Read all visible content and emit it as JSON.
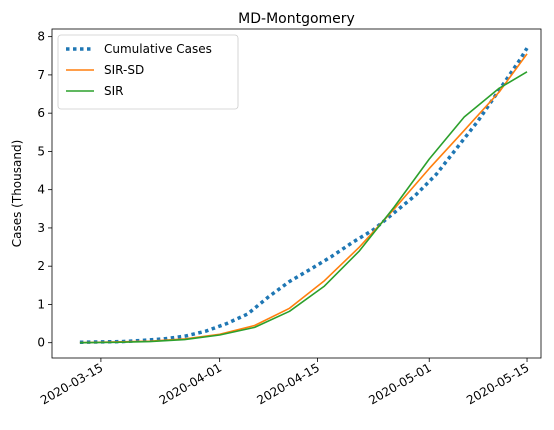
{
  "chart_data": {
    "type": "line",
    "title": "MD-Montgomery",
    "ylabel": "Cases (Thousand)",
    "xlabel": "",
    "x_axis_type": "date",
    "x_ticks": [
      "2020-03-15",
      "2020-04-01",
      "2020-04-15",
      "2020-05-01",
      "2020-05-15"
    ],
    "y_ticks": [
      0,
      1,
      2,
      3,
      4,
      5,
      6,
      7,
      8
    ],
    "xlim": [
      "2020-03-08",
      "2020-05-17"
    ],
    "ylim": [
      -0.4,
      8.2
    ],
    "grid": false,
    "legend_placement": "top-left",
    "series": [
      {
        "name": "Cumulative Cases",
        "color": "#1f77b4",
        "style": "dotted",
        "points": [
          [
            "2020-03-12",
            0.01
          ],
          [
            "2020-03-15",
            0.02
          ],
          [
            "2020-03-18",
            0.03
          ],
          [
            "2020-03-21",
            0.06
          ],
          [
            "2020-03-24",
            0.1
          ],
          [
            "2020-03-27",
            0.17
          ],
          [
            "2020-03-30",
            0.3
          ],
          [
            "2020-04-02",
            0.5
          ],
          [
            "2020-04-05",
            0.75
          ],
          [
            "2020-04-08",
            1.2
          ],
          [
            "2020-04-11",
            1.6
          ],
          [
            "2020-04-14",
            1.92
          ],
          [
            "2020-04-17",
            2.25
          ],
          [
            "2020-04-20",
            2.62
          ],
          [
            "2020-04-23",
            2.95
          ],
          [
            "2020-04-26",
            3.4
          ],
          [
            "2020-04-29",
            3.85
          ],
          [
            "2020-05-02",
            4.4
          ],
          [
            "2020-05-05",
            5.1
          ],
          [
            "2020-05-08",
            5.8
          ],
          [
            "2020-05-11",
            6.6
          ],
          [
            "2020-05-14",
            7.4
          ],
          [
            "2020-05-15",
            7.7
          ]
        ]
      },
      {
        "name": "SIR-SD",
        "color": "#ff7f0e",
        "style": "solid",
        "points": [
          [
            "2020-03-12",
            0.0
          ],
          [
            "2020-03-17",
            0.02
          ],
          [
            "2020-03-22",
            0.04
          ],
          [
            "2020-03-27",
            0.1
          ],
          [
            "2020-04-01",
            0.22
          ],
          [
            "2020-04-06",
            0.45
          ],
          [
            "2020-04-11",
            0.9
          ],
          [
            "2020-04-16",
            1.62
          ],
          [
            "2020-04-21",
            2.5
          ],
          [
            "2020-04-26",
            3.5
          ],
          [
            "2020-05-01",
            4.55
          ],
          [
            "2020-05-06",
            5.55
          ],
          [
            "2020-05-11",
            6.55
          ],
          [
            "2020-05-15",
            7.55
          ]
        ]
      },
      {
        "name": "SIR",
        "color": "#2ca02c",
        "style": "solid",
        "points": [
          [
            "2020-03-12",
            0.0
          ],
          [
            "2020-03-17",
            0.01
          ],
          [
            "2020-03-22",
            0.03
          ],
          [
            "2020-03-27",
            0.08
          ],
          [
            "2020-04-01",
            0.2
          ],
          [
            "2020-04-06",
            0.4
          ],
          [
            "2020-04-11",
            0.82
          ],
          [
            "2020-04-16",
            1.48
          ],
          [
            "2020-04-21",
            2.4
          ],
          [
            "2020-04-26",
            3.55
          ],
          [
            "2020-05-01",
            4.8
          ],
          [
            "2020-05-06",
            5.9
          ],
          [
            "2020-05-11",
            6.65
          ],
          [
            "2020-05-15",
            7.08
          ]
        ]
      }
    ]
  }
}
